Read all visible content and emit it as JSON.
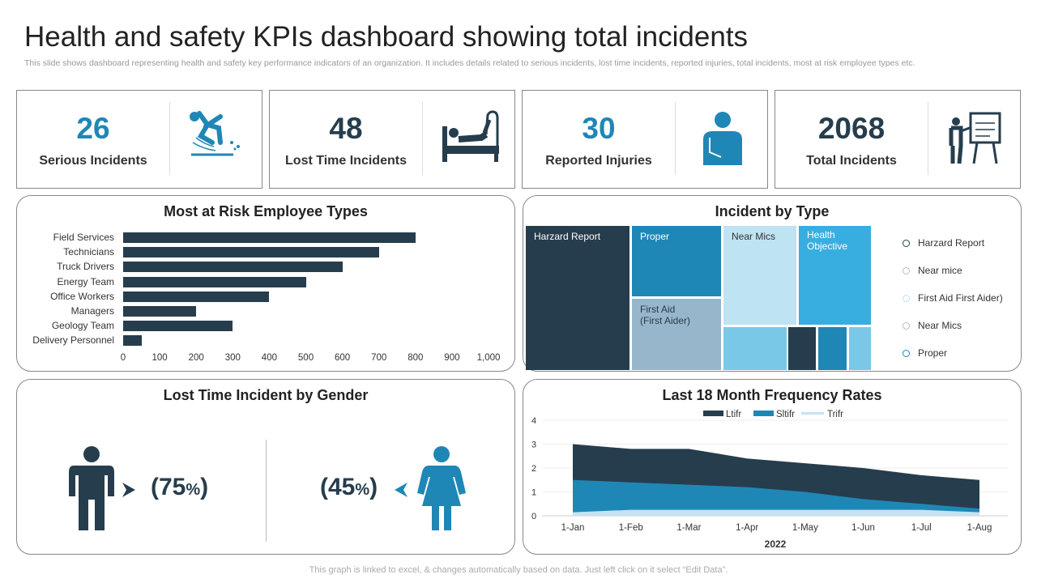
{
  "header": {
    "title": "Health and safety KPIs dashboard showing total incidents",
    "subtitle": "This slide shows dashboard representing health and safety key performance indicators of an organization. It includes details related to serious incidents, lost time incidents, reported injuries, total incidents, most at risk employee types etc."
  },
  "kpis": [
    {
      "value": "26",
      "label": "Serious Incidents",
      "color": "#1F87B5",
      "icon": "slip-fall-icon"
    },
    {
      "value": "48",
      "label": "Lost Time Incidents",
      "color": "#263D4D",
      "icon": "hospital-bed-icon"
    },
    {
      "value": "30",
      "label": "Reported Injuries",
      "color": "#1F87B5",
      "icon": "injured-person-icon"
    },
    {
      "value": "2068",
      "label": "Total Incidents",
      "color": "#263D4D",
      "icon": "presentation-board-icon"
    }
  ],
  "risk": {
    "title": "Most at Risk Employee Types"
  },
  "incident_type": {
    "title": "Incident by Type",
    "tiles": [
      "Harzard Report",
      "Proper",
      "First Aid\n(First Aider)",
      "Near Mics",
      "Health\nObjective"
    ],
    "legend": [
      "Harzard Report",
      "Near mice",
      "First Aid First Aider)",
      "Near Mics",
      "Proper"
    ]
  },
  "gender": {
    "title": "Lost Time Incident by Gender",
    "male": "(75",
    "female": "(45",
    "pct": "%",
    "close": ")"
  },
  "freq": {
    "title": "Last 18 Month Frequency Rates"
  },
  "chart_data": [
    {
      "type": "bar",
      "orientation": "horizontal",
      "title": "Most at Risk Employee Types",
      "categories": [
        "Field Services",
        "Technicians",
        "Truck Drivers",
        "Energy Team",
        "Office Workers",
        "Managers",
        "Geology Team",
        "Delivery Personnel"
      ],
      "values": [
        800,
        700,
        600,
        500,
        400,
        200,
        300,
        50
      ],
      "xlim": [
        0,
        1000
      ],
      "ticks": [
        "0",
        "100",
        "200",
        "300",
        "400",
        "500",
        "600",
        "700",
        "800",
        "900",
        "1,000"
      ],
      "color": "#263D4D"
    },
    {
      "type": "area",
      "title": "Last 18 Month Frequency Rates",
      "xlabel": "2022",
      "categories": [
        "1-Jan",
        "1-Feb",
        "1-Mar",
        "1-Apr",
        "1-May",
        "1-Jun",
        "1-Jul",
        "1-Aug"
      ],
      "ylim": [
        0,
        4
      ],
      "yticks": [
        "0",
        "1",
        "2",
        "3",
        "4"
      ],
      "legend": "top",
      "grid": true,
      "series": [
        {
          "name": "Ltifr",
          "color": "#263D4D",
          "values": [
            3.0,
            2.8,
            2.8,
            2.4,
            2.2,
            2.0,
            1.7,
            1.5
          ]
        },
        {
          "name": "Sltifr",
          "color": "#1F87B5",
          "values": [
            1.5,
            1.4,
            1.3,
            1.2,
            1.0,
            0.7,
            0.5,
            0.3
          ]
        },
        {
          "name": "Trifr",
          "color": "#C5E3F2",
          "values": [
            0.15,
            0.25,
            0.25,
            0.25,
            0.25,
            0.25,
            0.25,
            0.15
          ]
        }
      ]
    }
  ],
  "footer": "This graph is linked to excel, & changes automatically based on data. Just left click on it select “Edit Data”."
}
